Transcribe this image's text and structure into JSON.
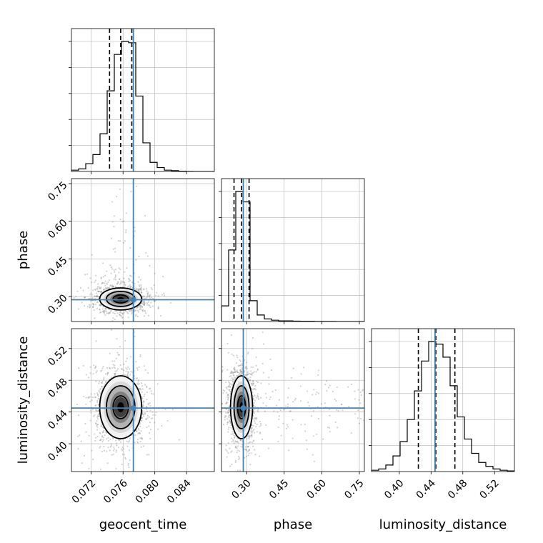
{
  "chart_data": {
    "type": "corner",
    "parameters": [
      {
        "name": "geocent_time",
        "label": "geocent_time",
        "range": [
          0.0695,
          0.0875
        ],
        "ticks": [
          0.072,
          0.076,
          0.08,
          0.084
        ],
        "tick_labels": [
          "0.072",
          "0.076",
          "0.080",
          "0.084"
        ]
      },
      {
        "name": "phase",
        "label": "phase",
        "range": [
          0.2,
          0.77
        ],
        "ticks": [
          0.3,
          0.45,
          0.6,
          0.75
        ],
        "tick_labels": [
          "0.30",
          "0.45",
          "0.60",
          "0.75"
        ]
      },
      {
        "name": "luminosity_distance",
        "label": "luminosity_distance",
        "range": [
          0.365,
          0.545
        ],
        "ticks": [
          0.4,
          0.44,
          0.48,
          0.52
        ],
        "tick_labels": [
          "0.40",
          "0.44",
          "0.48",
          "0.52"
        ]
      }
    ],
    "truths": {
      "geocent_time": 0.0773,
      "phase": 0.287,
      "luminosity_distance": 0.445
    },
    "quantiles": {
      "geocent_time": [
        0.0743,
        0.0757,
        0.0771
      ],
      "phase": [
        0.25,
        0.28,
        0.31
      ],
      "luminosity_distance": [
        0.424,
        0.446,
        0.47
      ]
    },
    "histograms": {
      "geocent_time": {
        "edges_start": 0.0695,
        "bin_width": 0.0009,
        "counts": [
          0.01,
          0.02,
          0.06,
          0.13,
          0.29,
          0.62,
          0.9,
          1.0,
          0.99,
          0.58,
          0.22,
          0.07,
          0.03,
          0.01,
          0.006,
          0.002,
          0.001,
          0.0,
          0.0,
          0.0
        ]
      },
      "phase": {
        "edges_start": 0.2,
        "bin_width": 0.0285,
        "counts": [
          0.12,
          0.55,
          1.0,
          0.92,
          0.16,
          0.05,
          0.02,
          0.01,
          0.005,
          0.005,
          0.003,
          0.002,
          0.002,
          0.001,
          0.001,
          0.001,
          0.0,
          0.0,
          0.0,
          0.0
        ]
      },
      "luminosity_distance": {
        "edges_start": 0.365,
        "bin_width": 0.009,
        "counts": [
          0.01,
          0.02,
          0.05,
          0.12,
          0.23,
          0.4,
          0.62,
          0.85,
          1.0,
          0.98,
          0.88,
          0.66,
          0.42,
          0.25,
          0.14,
          0.07,
          0.04,
          0.02,
          0.01,
          0.005
        ]
      }
    },
    "pairs": [
      {
        "x": "geocent_time",
        "y": "phase",
        "center": [
          0.0757,
          0.29
        ],
        "sigma": [
          0.0012,
          0.02
        ],
        "contour_levels": [
          0.8,
          1.5,
          2.2
        ],
        "outlier_spread_y": [
          0.25,
          0.75
        ]
      },
      {
        "x": "geocent_time",
        "y": "luminosity_distance",
        "center": [
          0.0757,
          0.446
        ],
        "sigma": [
          0.0012,
          0.018
        ],
        "contour_levels": [
          0.8,
          1.5,
          2.2
        ],
        "outlier_spread_y": null
      },
      {
        "x": "phase",
        "y": "luminosity_distance",
        "center": [
          0.28,
          0.446
        ],
        "sigma": [
          0.02,
          0.018
        ],
        "contour_levels": [
          0.8,
          1.5,
          2.2
        ],
        "outlier_spread_y": null
      }
    ],
    "colors": {
      "truth": "#4682b4",
      "hist": "#000000",
      "points": "#808080",
      "density": "#000000"
    },
    "grid": true
  }
}
